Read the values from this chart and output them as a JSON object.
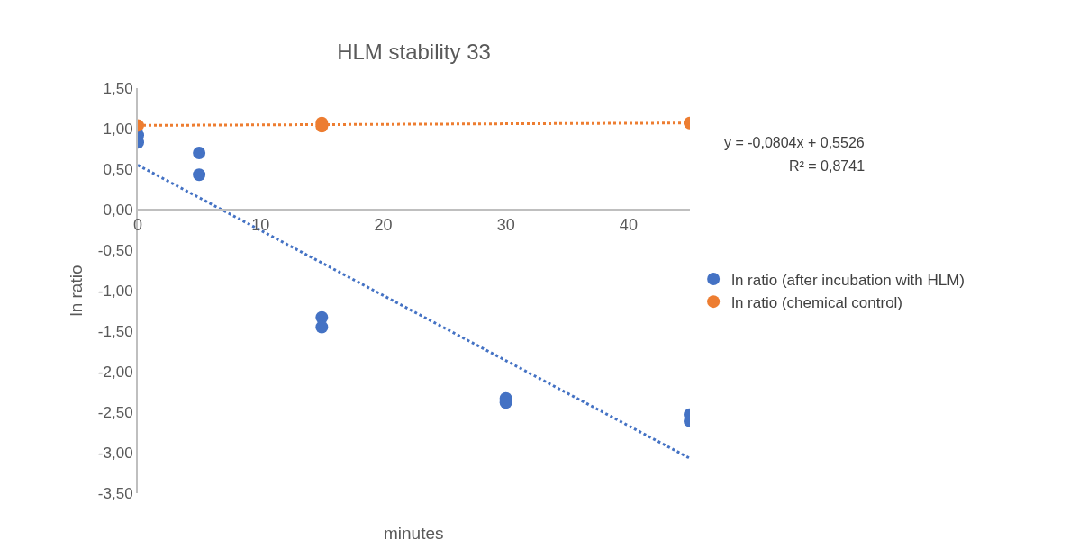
{
  "chart_data": {
    "type": "scatter",
    "title": "HLM stability 33",
    "xlabel": "minutes",
    "ylabel": "ln ratio",
    "xlim": [
      0,
      45
    ],
    "xticks": [
      0,
      10,
      20,
      30,
      40
    ],
    "ylim": [
      -3.5,
      1.5
    ],
    "yticks": [
      {
        "value": -3.5,
        "label": "-3,50"
      },
      {
        "value": -3,
        "label": "-3,00"
      },
      {
        "value": -2.5,
        "label": "-2,50"
      },
      {
        "value": -2,
        "label": "-2,00"
      },
      {
        "value": -1.5,
        "label": "-1,50"
      },
      {
        "value": -1,
        "label": "-1,00"
      },
      {
        "value": -0.5,
        "label": "-0,50"
      },
      {
        "value": 0,
        "label": "0,00"
      },
      {
        "value": 0.5,
        "label": "0,50"
      },
      {
        "value": 1,
        "label": "1,00"
      },
      {
        "value": 1.5,
        "label": "1,50"
      }
    ],
    "grid": false,
    "legend": "right",
    "marker": "circle",
    "annotations": [
      "y = -0,0804x + 0,5526",
      "R² = 0,8741"
    ],
    "series": [
      {
        "name": "ln ratio (after incubation with HLM)",
        "color": "#4472c4",
        "x": [
          0,
          0,
          5,
          5,
          15,
          15,
          30,
          30,
          45,
          45
        ],
        "values": [
          0.92,
          0.83,
          0.7,
          0.43,
          -1.33,
          -1.45,
          -2.33,
          -2.38,
          -2.53,
          -2.61
        ]
      },
      {
        "name": "ln ratio (chemical control)",
        "color": "#ed7d31",
        "x": [
          0,
          15,
          15,
          45
        ],
        "values": [
          1.04,
          1.07,
          1.03,
          1.07
        ]
      },
      {
        "type": "line",
        "color": "#4472c4",
        "line_style": "dotted",
        "marker": "none",
        "x": [
          0,
          45
        ],
        "values": [
          0.55,
          -3.07
        ]
      },
      {
        "type": "line",
        "color": "#ed7d31",
        "line_style": "dotted",
        "marker": "none",
        "x": [
          0,
          45
        ],
        "values": [
          1.04,
          1.07
        ]
      }
    ]
  }
}
